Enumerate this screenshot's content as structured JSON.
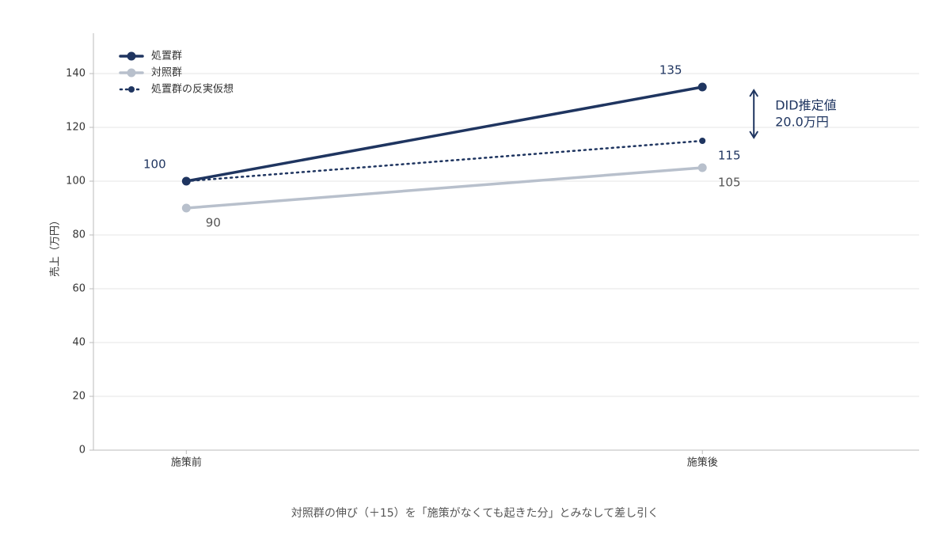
{
  "chart_data": {
    "type": "line",
    "categories": [
      "施策前",
      "施策後"
    ],
    "series": [
      {
        "name": "処置群",
        "color": "#1f3560",
        "values": [
          100,
          135
        ]
      },
      {
        "name": "対照群",
        "color": "#b8c0cc",
        "values": [
          90,
          105
        ]
      },
      {
        "name": "処置群の反実仮想",
        "color": "#1f3560",
        "values": [
          100,
          115
        ],
        "dashed": true
      }
    ],
    "ylabel": "売上（万円）",
    "xlabel": "対照群の伸び（＋15）を「施策がなくても起きた分」とみなして差し引く",
    "ylim": [
      0,
      155
    ],
    "yticks": [
      0,
      20,
      40,
      60,
      80,
      100,
      120,
      140
    ],
    "grid": true,
    "legend": "upper left",
    "annotation": [
      "DID推定値",
      "20.0万円"
    ]
  }
}
